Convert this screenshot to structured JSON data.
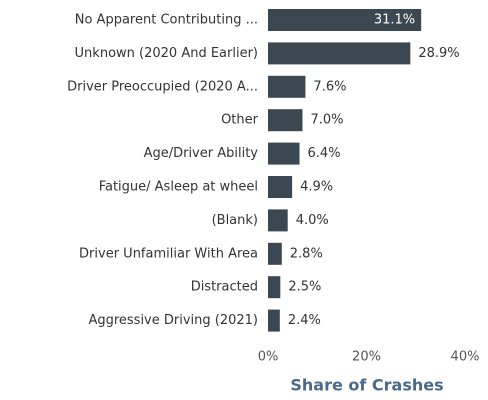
{
  "chart_data": {
    "type": "bar",
    "orientation": "horizontal",
    "categories": [
      "No Apparent Contributing ...",
      "Unknown (2020 And Earlier)",
      "Driver Preoccupied (2020 A...",
      "Other",
      "Age/Driver Ability",
      "Fatigue/ Asleep at wheel",
      "(Blank)",
      "Driver Unfamiliar With Area",
      "Distracted",
      "Aggressive Driving (2021)"
    ],
    "values": [
      31.1,
      28.9,
      7.6,
      7.0,
      6.4,
      4.9,
      4.0,
      2.8,
      2.5,
      2.4
    ],
    "value_labels": [
      "31.1%",
      "28.9%",
      "7.6%",
      "7.0%",
      "6.4%",
      "4.9%",
      "4.0%",
      "2.8%",
      "2.5%",
      "2.4%"
    ],
    "color": "#3b4852",
    "xlim": [
      0,
      40
    ],
    "xticks": [
      {
        "value": 0,
        "label": "0%"
      },
      {
        "value": 20,
        "label": "20%"
      },
      {
        "value": 40,
        "label": "40%"
      }
    ],
    "x_label": "Share of Crashes"
  }
}
